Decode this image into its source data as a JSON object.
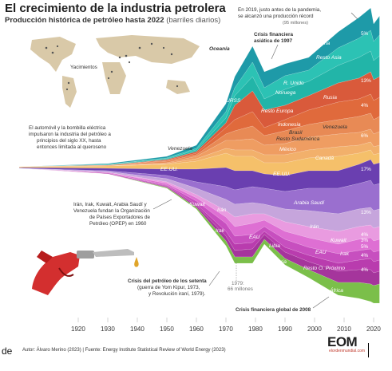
{
  "header": {
    "title": "El crecimiento de la industria petrolera",
    "subtitle": "Producción histórica de petróleo hasta 2022",
    "subtitle_unit": "(barriles diarios)"
  },
  "map": {
    "label": "Yacimientos"
  },
  "annotations": {
    "record_line1": "En 2019, justo antes de la pandemia,",
    "record_line2": "se alcanzó una producción récord",
    "record_line3": "(95 millones)",
    "asia_crisis_1": "Crisis financiera",
    "asia_crisis_2": "asiática de 1997",
    "bulb_1": "El automóvil y la bombilla eléctrica",
    "bulb_2": "impulsaron la industria del petróleo a",
    "bulb_3": "principios del siglo XX, hasta",
    "bulb_4": "entonces limitada al queroseno",
    "opec_1": "Irán, Irak, Kuwait, Arabia Saudí y",
    "opec_2": "Venezuela fundan la Organización",
    "opec_3": "de Países Exportadores de",
    "opec_4": "Petróleo (OPEP) en 1960",
    "seventies_1": "Crisis del petróleo de los setenta",
    "seventies_2": "(guerra de Yom Kipur, 1973,",
    "seventies_3": "y Revolución iraní, 1979).",
    "y1979_1": "1979:",
    "y1979_2": "66 millones",
    "gfc": "Crisis financiera global de 2008"
  },
  "footer": {
    "prefix": "de",
    "source": "Autor: Álvaro Merino (2023) | Fuente: Energy Institute Statistical Review of World Energy (2023)",
    "logo": "EOM",
    "logo_sub": "elordenmundial.com"
  },
  "colors": {
    "oceania": "#1e9aa8",
    "asia": "#22b5a8",
    "china": "#2cc2b4",
    "uk": "#d95a3b",
    "norway": "#e06a3c",
    "russia": "#e2733f",
    "urss": "#e88a55",
    "europe": "#ef9d62",
    "indonesia": "#f2b06b",
    "brasil": "#f5c06a",
    "south_america": "#f3c35f",
    "venezuela": "#f2cf5f",
    "mexico": "#c6a5dc",
    "canada": "#9a6fcf",
    "usa": "#6a3fb0",
    "arabia": "#e99be0",
    "iran": "#de6fd3",
    "irak": "#c74fbf",
    "kuwait": "#b93cae",
    "eau": "#a5359c",
    "libya": "#93318d",
    "nigeria": "#7f2d7d",
    "other_mideast": "#9d3c7a",
    "africa": "#7bbf4a"
  },
  "chart_data": {
    "type": "area",
    "title": "El crecimiento de la industria petrolera",
    "subtitle": "Producción histórica de petróleo hasta 2022 (barriles diarios)",
    "x_ticks": [
      1920,
      1930,
      1940,
      1950,
      1960,
      1970,
      1980,
      1990,
      2000,
      2010,
      2020
    ],
    "total_points": [
      {
        "year": 1979,
        "value_millions": 66
      },
      {
        "year": 2019,
        "value_millions": 95
      }
    ],
    "series_labels": [
      "Oceanía",
      "China",
      "Resto Asia",
      "R. Unido",
      "Noruega",
      "Rusia",
      "URSS",
      "Resto Europa",
      "Indonesia",
      "Brasil",
      "Resto Sudamérica",
      "Venezuela",
      "México",
      "Canadá",
      "EE.UU.",
      "Arabia Saudí",
      "Irán",
      "Irak",
      "Kuwait",
      "EAU",
      "Libia",
      "Nigeria",
      "Resto O. Próximo",
      "Resto África"
    ],
    "shares_2022": [
      {
        "label": "Resto Asia",
        "pct": "5%"
      },
      {
        "label": "R. Unido",
        "pct": "13%"
      },
      {
        "label": "Resto Europa",
        "pct": "4%"
      },
      {
        "label": "Resto Sudamérica",
        "pct": "6%"
      },
      {
        "label": "EE.UU.",
        "pct": "17%"
      },
      {
        "label": "Arabia Saudí",
        "pct": "13%"
      },
      {
        "label": "Irán",
        "pct": "4%"
      },
      {
        "label": "Kuwait",
        "pct": "3%"
      },
      {
        "label": "Irak",
        "pct": "5%"
      },
      {
        "label": "EAU",
        "pct": "4%"
      },
      {
        "label": "Resto O. Próximo",
        "pct": "4%"
      }
    ]
  }
}
